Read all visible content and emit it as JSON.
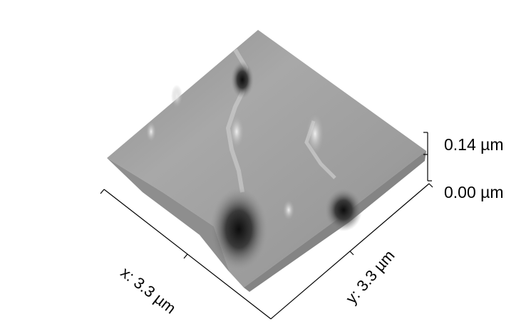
{
  "scale": {
    "top_label": "0.14 µm",
    "bottom_label": "0.00 µm"
  },
  "axes": {
    "x_label": "x: 3.3 µm",
    "y_label": "y: 3.3 µm"
  },
  "colors": {
    "surface_light": "#d8d8d8",
    "surface_mid": "#9a9a9a",
    "surface_dark": "#1e1e1e",
    "axis": "#000000"
  }
}
